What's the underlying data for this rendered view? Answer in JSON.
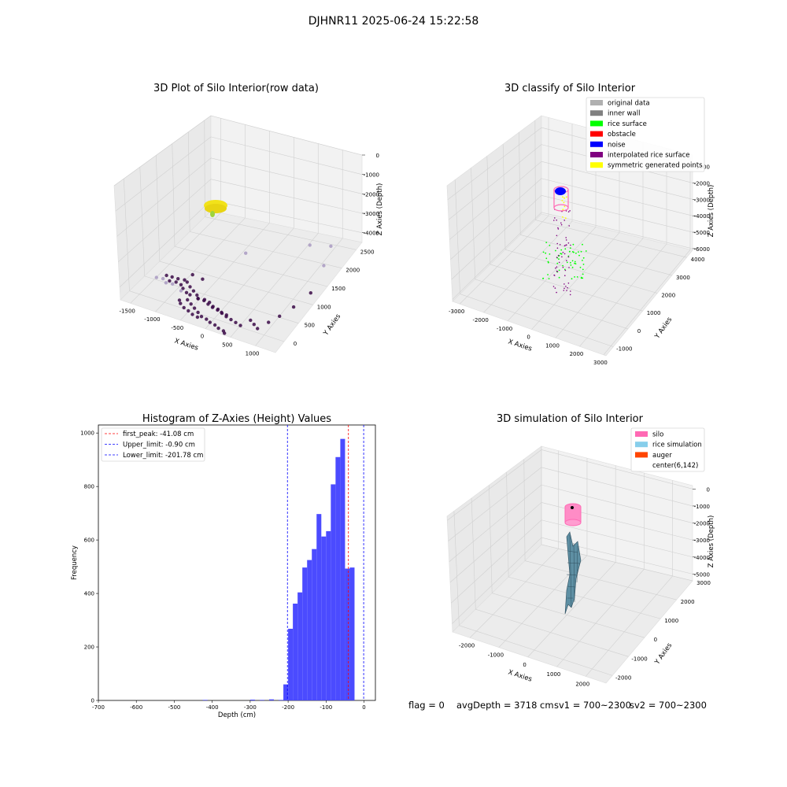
{
  "figure": {
    "suptitle": "DJHNR11 2025-06-24 15:22:58",
    "footer": {
      "flag": "flag = 0",
      "avg_depth": "avgDepth = 3718 cm",
      "sv1": "sv1 = 700~2300",
      "sv2": "sv2 = 700~2300"
    }
  },
  "chart_data": [
    {
      "type": "scatter",
      "title": "3D Plot of Silo Interior(row data)",
      "xlabel": "X Axies",
      "ylabel": "Y Axies",
      "zlabel": "Z Axies (Depth)",
      "x_ticks": [
        -1500,
        -1000,
        -500,
        0,
        500,
        1000
      ],
      "y_ticks": [
        0,
        500,
        1000,
        1500,
        2000,
        2500
      ],
      "z_ticks": [
        0,
        -1000,
        -2000,
        -3000,
        -4000
      ],
      "xlim": [
        -1700,
        1400
      ],
      "ylim": [
        -300,
        2700
      ],
      "zlim": [
        -4500,
        0
      ],
      "grid": true,
      "colors": {
        "ring": "#f2e21a",
        "ring_tip": "#9ed43b",
        "low": "#3b0a48",
        "high": "#a99ac2"
      },
      "points": [
        {
          "x": -1200,
          "y": 400,
          "z": -3880
        },
        {
          "x": -1100,
          "y": 420,
          "z": -3900
        },
        {
          "x": -1000,
          "y": 450,
          "z": -3950
        },
        {
          "x": -950,
          "y": 300,
          "z": -3850
        },
        {
          "x": -1050,
          "y": 250,
          "z": -3800
        },
        {
          "x": -900,
          "y": 500,
          "z": -4000
        },
        {
          "x": -800,
          "y": 420,
          "z": -3900
        },
        {
          "x": -850,
          "y": 300,
          "z": -3900
        },
        {
          "x": -1150,
          "y": 200,
          "z": -3700
        },
        {
          "x": -1250,
          "y": 150,
          "z": -3650
        },
        {
          "x": -700,
          "y": 350,
          "z": -3950
        },
        {
          "x": -600,
          "y": 300,
          "z": -4000
        },
        {
          "x": -750,
          "y": 200,
          "z": -3850
        },
        {
          "x": -650,
          "y": 150,
          "z": -3900
        },
        {
          "x": -900,
          "y": 100,
          "z": -3600
        },
        {
          "x": -1000,
          "y": 50,
          "z": -3550
        },
        {
          "x": -700,
          "y": 50,
          "z": -3700
        },
        {
          "x": -550,
          "y": 100,
          "z": -3850
        },
        {
          "x": -400,
          "y": 120,
          "z": -3950
        },
        {
          "x": -300,
          "y": 150,
          "z": -4000
        },
        {
          "x": -200,
          "y": 120,
          "z": -4050
        },
        {
          "x": -100,
          "y": 100,
          "z": -4100
        },
        {
          "x": 0,
          "y": 100,
          "z": -4150
        },
        {
          "x": 100,
          "y": 80,
          "z": -4200
        },
        {
          "x": 200,
          "y": 60,
          "z": -4250
        },
        {
          "x": 300,
          "y": 50,
          "z": -4300
        },
        {
          "x": 400,
          "y": 40,
          "z": -4350
        },
        {
          "x": 500,
          "y": 30,
          "z": -4400
        },
        {
          "x": -500,
          "y": 250,
          "z": -4050
        },
        {
          "x": -450,
          "y": 200,
          "z": -4100
        },
        {
          "x": -350,
          "y": 250,
          "z": -4150
        },
        {
          "x": -250,
          "y": 250,
          "z": -4200
        },
        {
          "x": -150,
          "y": 200,
          "z": -4250
        },
        {
          "x": -50,
          "y": 200,
          "z": -4300
        },
        {
          "x": 50,
          "y": 150,
          "z": -4300
        },
        {
          "x": 150,
          "y": 150,
          "z": -4350
        },
        {
          "x": -600,
          "y": 100,
          "z": -4150
        },
        {
          "x": -500,
          "y": 50,
          "z": -4200
        },
        {
          "x": -400,
          "y": 0,
          "z": -4250
        },
        {
          "x": -300,
          "y": -50,
          "z": -4300
        },
        {
          "x": -200,
          "y": -100,
          "z": -4350
        },
        {
          "x": -100,
          "y": -100,
          "z": -4400
        },
        {
          "x": 0,
          "y": -150,
          "z": -4400
        },
        {
          "x": 100,
          "y": -150,
          "z": -4450
        },
        {
          "x": 200,
          "y": -200,
          "z": -4450
        },
        {
          "x": 300,
          "y": -200,
          "z": -4500
        },
        {
          "x": 350,
          "y": -250,
          "z": -4500
        },
        {
          "x": -700,
          "y": 0,
          "z": -4100
        },
        {
          "x": -650,
          "y": -50,
          "z": -4150
        },
        {
          "x": -550,
          "y": -100,
          "z": -4200
        },
        {
          "x": -450,
          "y": -120,
          "z": -4250
        },
        {
          "x": -350,
          "y": -150,
          "z": -4300
        },
        {
          "x": -250,
          "y": -150,
          "z": -4350
        },
        {
          "x": 600,
          "y": 200,
          "z": -4300
        },
        {
          "x": 700,
          "y": 150,
          "z": -4350
        },
        {
          "x": 800,
          "y": 100,
          "z": -4400
        },
        {
          "x": 900,
          "y": 300,
          "z": -4300
        },
        {
          "x": 1000,
          "y": 500,
          "z": -4200
        },
        {
          "x": 1100,
          "y": 800,
          "z": -4100
        },
        {
          "x": 1200,
          "y": 1200,
          "z": -3900
        },
        {
          "x": 1100,
          "y": 1800,
          "z": -3500
        },
        {
          "x": 1000,
          "y": 2200,
          "z": -3200
        },
        {
          "x": 700,
          "y": 2000,
          "z": -3100
        },
        {
          "x": -100,
          "y": 1200,
          "z": -3000
        },
        {
          "x": -800,
          "y": 600,
          "z": -3800
        },
        {
          "x": -600,
          "y": 600,
          "z": -3850
        }
      ]
    },
    {
      "type": "scatter",
      "title": "3D classify of Silo Interior",
      "xlabel": "X Axies",
      "ylabel": "Y Axies",
      "zlabel": "Z Axies (Depth)",
      "x_ticks": [
        -3000,
        -2000,
        -1000,
        0,
        1000,
        2000,
        3000
      ],
      "y_ticks": [
        -1000,
        0,
        1000,
        2000,
        3000,
        4000
      ],
      "z_ticks": [
        -1000,
        -2000,
        -3000,
        -4000,
        -5000,
        -6000
      ],
      "xlim": [
        -3300,
        3100
      ],
      "ylim": [
        -1500,
        4400
      ],
      "zlim": [
        -6100,
        -300
      ],
      "grid": true,
      "legend": {
        "position": "top-right",
        "entries": [
          {
            "label": "original data",
            "color": "#b0b0b0"
          },
          {
            "label": "inner wall",
            "color": "#808080"
          },
          {
            "label": "rice surface",
            "color": "#00ff00"
          },
          {
            "label": "obstacle",
            "color": "#ff0000"
          },
          {
            "label": "noise",
            "color": "#0000ff"
          },
          {
            "label": "interpolated rice surface",
            "color": "#800080"
          },
          {
            "label": "symmetric generated points",
            "color": "#ffff00"
          }
        ]
      }
    },
    {
      "type": "bar",
      "title": "Histogram of Z-Axies (Height) Values",
      "xlabel": "Depth (cm)",
      "ylabel": "Frequency",
      "xlim": [
        -700,
        30
      ],
      "ylim": [
        0,
        1030
      ],
      "x_ticks": [
        -700,
        -600,
        -500,
        -400,
        -300,
        -200,
        -100,
        0
      ],
      "y_ticks": [
        0,
        200,
        400,
        600,
        800,
        1000
      ],
      "bar_color": "#4b4bff",
      "bin_width": 12.5,
      "bins": [
        {
          "x": -425,
          "v": 2
        },
        {
          "x": -300,
          "v": 3
        },
        {
          "x": -275,
          "v": 2
        },
        {
          "x": -250,
          "v": 4
        },
        {
          "x": -225,
          "v": 2
        },
        {
          "x": -212.5,
          "v": 60
        },
        {
          "x": -200,
          "v": 268
        },
        {
          "x": -187.5,
          "v": 362
        },
        {
          "x": -175,
          "v": 404
        },
        {
          "x": -162.5,
          "v": 497
        },
        {
          "x": -150,
          "v": 525
        },
        {
          "x": -137.5,
          "v": 566
        },
        {
          "x": -125,
          "v": 697
        },
        {
          "x": -112.5,
          "v": 613
        },
        {
          "x": -100,
          "v": 633
        },
        {
          "x": -87.5,
          "v": 808
        },
        {
          "x": -75,
          "v": 910
        },
        {
          "x": -62.5,
          "v": 978
        },
        {
          "x": -50,
          "v": 493
        },
        {
          "x": -37.5,
          "v": 497
        }
      ],
      "vlines": [
        {
          "label": "first_peak: -41.08 cm",
          "x": -41.08,
          "color": "#ff0000"
        },
        {
          "label": "Upper_limit: -0.90 cm",
          "x": -0.9,
          "color": "#0000ff"
        },
        {
          "label": "Lower_limit: -201.78 cm",
          "x": -201.78,
          "color": "#0000ff"
        }
      ],
      "legend_position": "top-left"
    },
    {
      "type": "surface",
      "title": "3D simulation of Silo Interior",
      "xlabel": "X Axies",
      "ylabel": "Y Axies",
      "zlabel": "Z Axies (Depth)",
      "x_ticks": [
        -2000,
        -1000,
        0,
        1000,
        2000
      ],
      "y_ticks": [
        -2000,
        -1000,
        0,
        1000,
        2000,
        3000
      ],
      "z_ticks": [
        0,
        -1000,
        -2000,
        -3000,
        -4000,
        -5000
      ],
      "xlim": [
        -2600,
        2700
      ],
      "ylim": [
        -2400,
        3000
      ],
      "zlim": [
        -5400,
        200
      ],
      "grid": true,
      "legend": {
        "position": "top-right",
        "entries": [
          {
            "label": "silo",
            "color": "#ff69b4"
          },
          {
            "label": "rice simulation",
            "color": "#87ceeb"
          },
          {
            "label": "auger",
            "color": "#ff4500"
          },
          {
            "label": "center(6,142)",
            "color": ""
          }
        ]
      }
    }
  ]
}
